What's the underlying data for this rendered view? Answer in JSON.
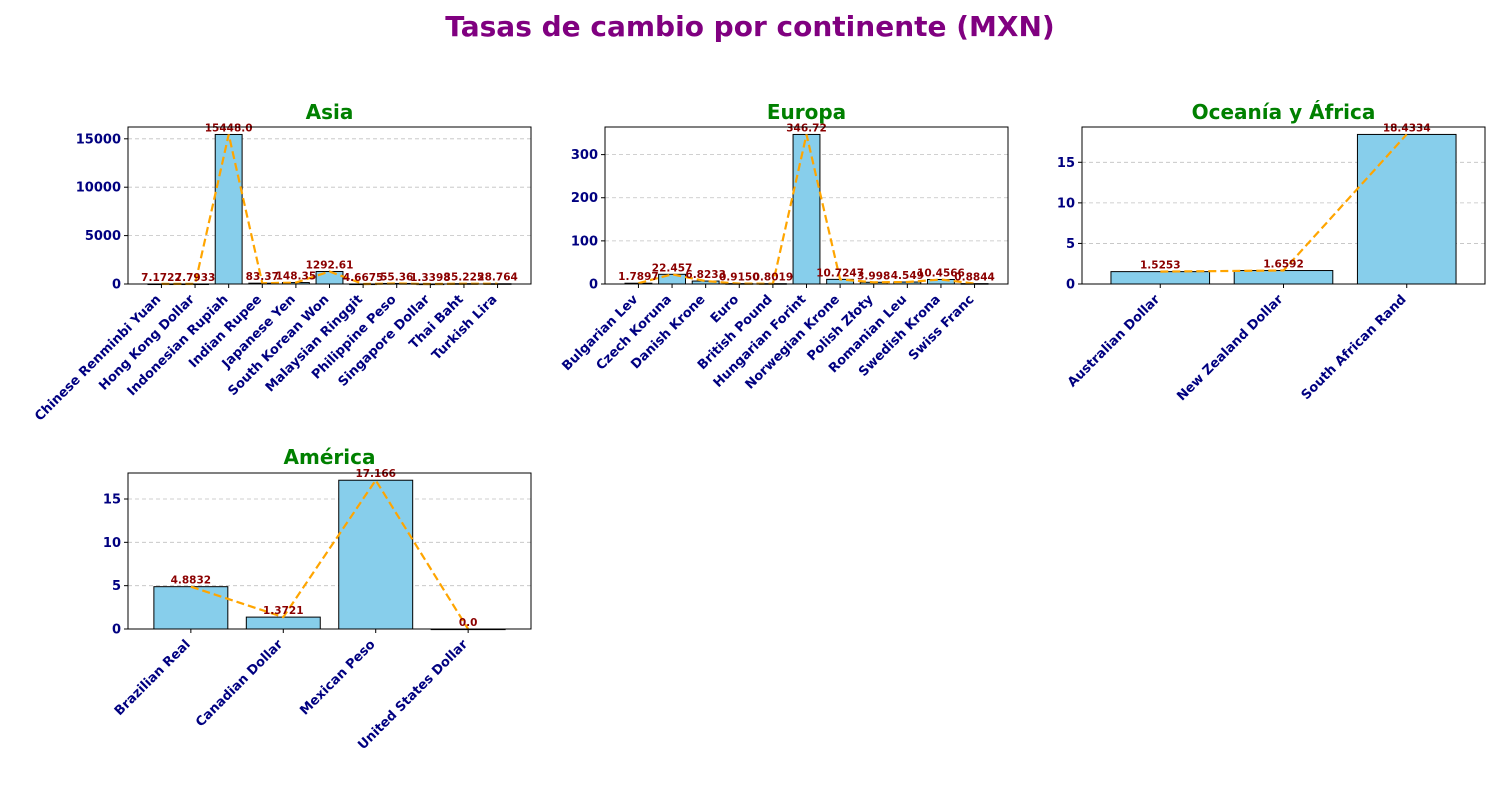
{
  "title": "Tasas de cambio por continente (MXN)",
  "colors": {
    "title": "#800080",
    "subtitle": "#008000",
    "tick": "#000080",
    "bar_fill": "#87ceeb",
    "bar_edge": "#000000",
    "line": "#ffa500",
    "data_label": "#8b0000",
    "grid": "#c0c0c0"
  },
  "chart_data": [
    {
      "type": "bar",
      "title": "Asia",
      "categories": [
        "Chinese Renminbi Yuan",
        "Hong Kong Dollar",
        "Indonesian Rupiah",
        "Indian Rupee",
        "Japanese Yen",
        "South Korean Won",
        "Malaysian Ringgit",
        "Philippine Peso",
        "Singapore Dollar",
        "Thai Baht",
        "Turkish Lira"
      ],
      "values": [
        7.1722,
        7.7933,
        15448.0,
        83.37,
        148.35,
        1292.61,
        4.6675,
        55.36,
        1.3398,
        35.225,
        28.764
      ],
      "labels": [
        "7.1722",
        "7.7933",
        "15448.0",
        "83.37",
        "148.35",
        "1292.61",
        "4.6675",
        "55.36",
        "1.3398",
        "35.225",
        "28.764"
      ],
      "yticks": [
        0,
        5000,
        10000,
        15000
      ],
      "ylim": [
        0,
        16220
      ],
      "grid": true,
      "overlay": "dashed line through bar tops"
    },
    {
      "type": "bar",
      "title": "Europa",
      "categories": [
        "Bulgarian Lev",
        "Czech Koruna",
        "Danish Krone",
        "Euro",
        "British Pound",
        "Hungarian Forint",
        "Norwegian Krone",
        "Polish Złoty",
        "Romanian Leu",
        "Swedish Krona",
        "Swiss Franc"
      ],
      "values": [
        1.7897,
        22.457,
        6.8233,
        0.915,
        0.8019,
        346.72,
        10.7247,
        3.998,
        4.549,
        10.4566,
        0.8844
      ],
      "labels": [
        "1.7897",
        "22.457",
        "6.8233",
        "0.9150",
        "0.8019",
        "346.72",
        "10.7247",
        "3.998",
        "4.549",
        "10.4566",
        "0.8844"
      ],
      "yticks": [
        0,
        100,
        200,
        300
      ],
      "ylim": [
        0,
        364
      ],
      "grid": true,
      "overlay": "dashed line through bar tops"
    },
    {
      "type": "bar",
      "title": "Oceanía y África",
      "categories": [
        "Australian Dollar",
        "New Zealand Dollar",
        "South African Rand"
      ],
      "values": [
        1.5253,
        1.6592,
        18.4334
      ],
      "labels": [
        "1.5253",
        "1.6592",
        "18.4334"
      ],
      "yticks": [
        0,
        5,
        10,
        15
      ],
      "ylim": [
        0,
        19.35
      ],
      "grid": true,
      "overlay": "dashed line through bar tops"
    },
    {
      "type": "bar",
      "title": "América",
      "categories": [
        "Brazilian Real",
        "Canadian Dollar",
        "Mexican Peso",
        "United States Dollar"
      ],
      "values": [
        4.8832,
        1.3721,
        17.166,
        0.0
      ],
      "labels": [
        "4.8832",
        "1.3721",
        "17.166",
        "0.0"
      ],
      "yticks": [
        0,
        5,
        10,
        15
      ],
      "ylim": [
        0,
        18.0
      ],
      "grid": true,
      "overlay": "dashed line through bar tops"
    }
  ]
}
